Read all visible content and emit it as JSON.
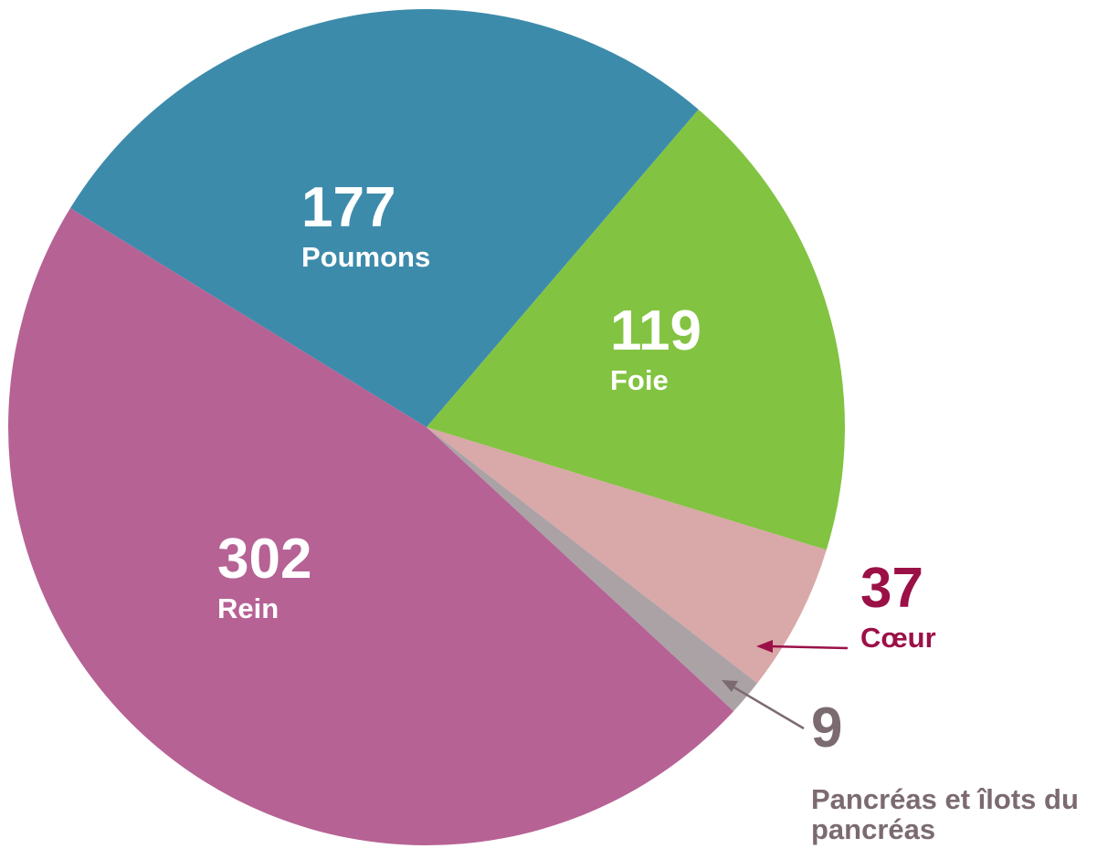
{
  "chart_data": {
    "type": "pie",
    "categories": [
      "Poumons",
      "Foie",
      "Cœur",
      "Pancréas et îlots du pancréas",
      "Rein"
    ],
    "values": [
      177,
      119,
      37,
      9,
      302
    ],
    "colors": [
      "#3d8bab",
      "#82c341",
      "#d9a8a8",
      "#aba2a6",
      "#b66295"
    ],
    "label_colors": [
      "#ffffff",
      "#ffffff",
      "#9b1047",
      "#7b6b71",
      "#ffffff"
    ]
  }
}
